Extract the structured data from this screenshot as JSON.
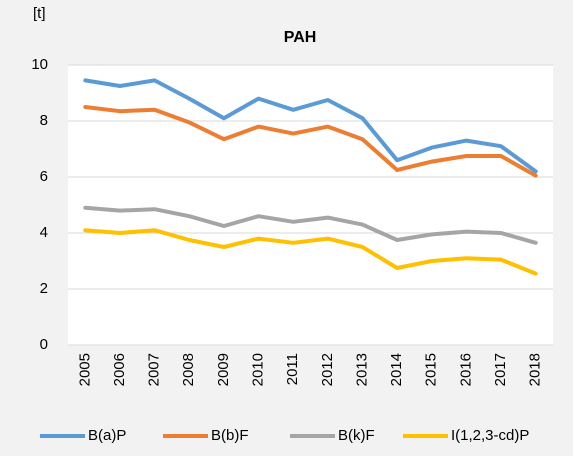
{
  "chart_data": {
    "type": "line",
    "title": "PAH",
    "y_label": "[t]",
    "categories": [
      "2005",
      "2006",
      "2007",
      "2008",
      "2009",
      "2010",
      "2011",
      "2012",
      "2013",
      "2014",
      "2015",
      "2016",
      "2017",
      "2018"
    ],
    "series": [
      {
        "name": "B(a)P",
        "color": "#5b9bd5",
        "values": [
          9.45,
          9.25,
          9.45,
          8.8,
          8.1,
          8.8,
          8.4,
          8.75,
          8.1,
          6.6,
          7.05,
          7.3,
          7.1,
          6.2
        ]
      },
      {
        "name": "B(b)F",
        "color": "#ed7d31",
        "values": [
          8.5,
          8.35,
          8.4,
          7.95,
          7.35,
          7.8,
          7.55,
          7.8,
          7.35,
          6.25,
          6.55,
          6.75,
          6.75,
          6.05
        ]
      },
      {
        "name": "B(k)F",
        "color": "#a5a5a5",
        "values": [
          4.9,
          4.8,
          4.85,
          4.6,
          4.25,
          4.6,
          4.4,
          4.55,
          4.3,
          3.75,
          3.95,
          4.05,
          4.0,
          3.65
        ]
      },
      {
        "name": "I(1,2,3-cd)P",
        "color": "#ffc000",
        "values": [
          4.1,
          4.0,
          4.1,
          3.75,
          3.5,
          3.8,
          3.65,
          3.8,
          3.5,
          2.75,
          3.0,
          3.1,
          3.05,
          2.55
        ]
      }
    ],
    "ylim": [
      0,
      10
    ],
    "yticks": [
      0,
      2,
      4,
      6,
      8,
      10
    ],
    "grid": true,
    "legend": "bottom"
  }
}
